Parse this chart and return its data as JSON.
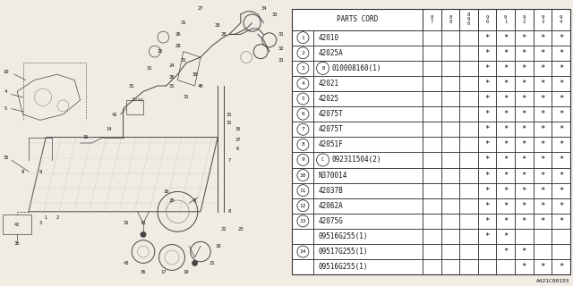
{
  "title": "PARTS CORD",
  "col_headers": [
    "8\n7",
    "8\n8",
    "8\n9\n0",
    "9\n0",
    "9\n1",
    "9\n2",
    "9\n3",
    "9\n4"
  ],
  "rows": [
    {
      "num": "1",
      "part": "42010",
      "special": null,
      "stars": [
        0,
        0,
        0,
        1,
        1,
        1,
        1,
        1
      ]
    },
    {
      "num": "2",
      "part": "42025A",
      "special": null,
      "stars": [
        0,
        0,
        0,
        1,
        1,
        1,
        1,
        1
      ]
    },
    {
      "num": "3",
      "part": "010008160(1)",
      "special": "B",
      "stars": [
        0,
        0,
        0,
        1,
        1,
        1,
        1,
        1
      ]
    },
    {
      "num": "4",
      "part": "42021",
      "special": null,
      "stars": [
        0,
        0,
        0,
        1,
        1,
        1,
        1,
        1
      ]
    },
    {
      "num": "5",
      "part": "42025",
      "special": null,
      "stars": [
        0,
        0,
        0,
        1,
        1,
        1,
        1,
        1
      ]
    },
    {
      "num": "6",
      "part": "42075T",
      "special": null,
      "stars": [
        0,
        0,
        0,
        1,
        1,
        1,
        1,
        1
      ]
    },
    {
      "num": "7",
      "part": "42075T",
      "special": null,
      "stars": [
        0,
        0,
        0,
        1,
        1,
        1,
        1,
        1
      ]
    },
    {
      "num": "8",
      "part": "42051F",
      "special": null,
      "stars": [
        0,
        0,
        0,
        1,
        1,
        1,
        1,
        1
      ]
    },
    {
      "num": "9",
      "part": "092311504(2)",
      "special": "C",
      "stars": [
        0,
        0,
        0,
        1,
        1,
        1,
        1,
        1
      ]
    },
    {
      "num": "10",
      "part": "N370014",
      "special": null,
      "stars": [
        0,
        0,
        0,
        1,
        1,
        1,
        1,
        1
      ]
    },
    {
      "num": "11",
      "part": "42037B",
      "special": null,
      "stars": [
        0,
        0,
        0,
        1,
        1,
        1,
        1,
        1
      ]
    },
    {
      "num": "12",
      "part": "42062A",
      "special": null,
      "stars": [
        0,
        0,
        0,
        1,
        1,
        1,
        1,
        1
      ]
    },
    {
      "num": "13",
      "part": "42075G",
      "special": null,
      "stars": [
        0,
        0,
        0,
        1,
        1,
        1,
        1,
        1
      ]
    },
    {
      "num": "",
      "part": "09516G255(1)",
      "special": null,
      "stars": [
        0,
        0,
        0,
        1,
        1,
        0,
        0,
        0
      ]
    },
    {
      "num": "14",
      "part": "09517G255(1)",
      "special": null,
      "stars": [
        0,
        0,
        0,
        0,
        1,
        1,
        0,
        0
      ]
    },
    {
      "num": "",
      "part": "09516G255(1)",
      "special": null,
      "stars": [
        0,
        0,
        0,
        0,
        0,
        1,
        1,
        1
      ]
    }
  ],
  "diagram_label": "A421C00155",
  "bg_color": "#f0ece4",
  "line_color": "#333333",
  "text_color": "#111111",
  "table_bg": "#ffffff"
}
